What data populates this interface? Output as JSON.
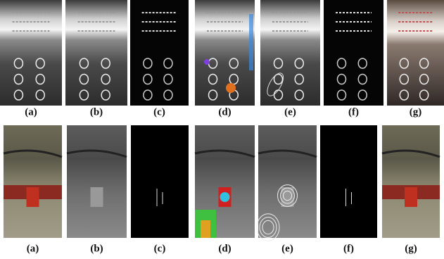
{
  "rows": [
    {
      "labels": [
        "(a)",
        "(b)",
        "(c)",
        "(d)",
        "(e)",
        "(f)",
        "(g)"
      ]
    },
    {
      "labels": [
        "(a)",
        "(b)",
        "(c)",
        "(d)",
        "(e)",
        "(f)",
        "(g)"
      ]
    }
  ]
}
